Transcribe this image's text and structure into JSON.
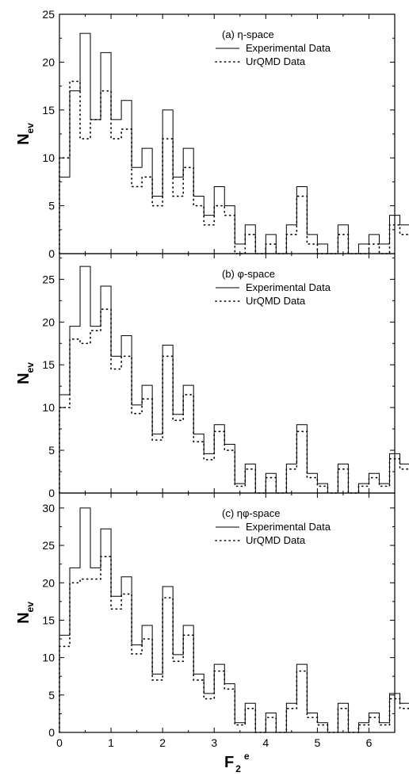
{
  "chart_data": [
    {
      "type": "histogram-step",
      "panel_label": "(a) η-space",
      "ylabel": "N",
      "ylabel_sub": "ev",
      "xlabel": "",
      "xlim": [
        0,
        6.5
      ],
      "ylim": [
        0,
        25
      ],
      "yticks": [
        "0",
        "5",
        "10",
        "15",
        "20",
        "25"
      ],
      "xticks": [],
      "bin_width": 0.2,
      "bin_start": 0.0,
      "series": [
        {
          "name": "Experimental Data",
          "style": "solid",
          "values": [
            8,
            17,
            23,
            14,
            21,
            14,
            16,
            9,
            11,
            6,
            15,
            8,
            11,
            6,
            4,
            7,
            5,
            1,
            3,
            0,
            2,
            0,
            3,
            7,
            2,
            1,
            0,
            3,
            0,
            1,
            2,
            1,
            4,
            3,
            1,
            0,
            2,
            1,
            0
          ]
        },
        {
          "name": "UrQMD Data",
          "style": "dotted",
          "values": [
            10,
            18,
            12,
            14,
            17,
            12,
            13,
            7,
            8,
            5,
            12,
            6,
            9,
            5,
            3,
            5,
            4,
            0,
            2,
            0,
            1,
            0,
            2,
            6,
            1,
            0,
            0,
            2,
            0,
            0,
            1,
            0,
            3,
            2,
            0,
            0,
            1,
            0,
            0
          ]
        }
      ]
    },
    {
      "type": "histogram-step",
      "panel_label": "(b) φ-space",
      "ylabel": "N",
      "ylabel_sub": "ev",
      "xlabel": "",
      "xlim": [
        0,
        6.5
      ],
      "ylim": [
        0,
        28
      ],
      "yticks": [
        "0",
        "5",
        "10",
        "15",
        "20",
        "25"
      ],
      "xticks": [],
      "bin_width": 0.2,
      "bin_start": 0.0,
      "series": [
        {
          "name": "Experimental Data",
          "style": "solid",
          "values": [
            11.5,
            19.5,
            26.5,
            19.5,
            24.2,
            16,
            18.4,
            10.3,
            12.6,
            6.9,
            17.3,
            9.2,
            12.6,
            6.9,
            4.6,
            8,
            5.7,
            1.1,
            3.4,
            0,
            2.3,
            0,
            3.4,
            8,
            2.3,
            1.1,
            0,
            3.4,
            0,
            1.1,
            2.3,
            1.1,
            4.6,
            3.4,
            1.1,
            0,
            2.3,
            1.1,
            0
          ]
        },
        {
          "name": "UrQMD Data",
          "style": "dotted",
          "values": [
            10,
            18,
            17.5,
            19,
            21.5,
            14.5,
            16,
            9.3,
            11,
            6.2,
            16,
            8.5,
            11.5,
            6,
            3.9,
            7.2,
            5,
            0.8,
            2.8,
            0,
            1.8,
            0,
            2.8,
            7.2,
            1.8,
            0.8,
            0,
            2.8,
            0,
            0.8,
            1.8,
            0.8,
            4,
            2.8,
            0.8,
            0,
            1.8,
            0.8,
            0
          ]
        }
      ]
    },
    {
      "type": "histogram-step",
      "panel_label": "(c) ηφ-space",
      "ylabel": "N",
      "ylabel_sub": "ev",
      "xlabel": "F",
      "xlabel_sub": "2",
      "xlabel_sup": "e",
      "xlim": [
        0,
        6.5
      ],
      "ylim": [
        0,
        32
      ],
      "yticks": [
        "0",
        "5",
        "10",
        "15",
        "20",
        "25",
        "30"
      ],
      "xticks": [
        "0",
        "1",
        "2",
        "3",
        "4",
        "5",
        "6"
      ],
      "bin_width": 0.2,
      "bin_start": 0.0,
      "series": [
        {
          "name": "Experimental Data",
          "style": "solid",
          "values": [
            13,
            22,
            30,
            22,
            27.2,
            18.2,
            20.8,
            11.7,
            14.3,
            7.8,
            19.5,
            10.4,
            14.3,
            7.8,
            5.2,
            9.1,
            6.5,
            1.3,
            3.9,
            0,
            2.6,
            0,
            3.9,
            9.1,
            2.6,
            1.3,
            0,
            3.9,
            0,
            1.3,
            2.6,
            1.3,
            5.2,
            3.9,
            1.3,
            0,
            2.6,
            1.3,
            0
          ]
        },
        {
          "name": "UrQMD Data",
          "style": "dotted",
          "values": [
            11.5,
            20,
            20.5,
            20.5,
            23.5,
            16.5,
            18.5,
            10.5,
            12.5,
            7,
            18,
            9.5,
            13,
            7,
            4.5,
            8.2,
            5.8,
            1,
            3.2,
            0,
            2,
            0,
            3.2,
            8.2,
            2,
            1,
            0,
            3.2,
            0,
            1,
            2,
            1,
            4.5,
            3.2,
            1,
            0,
            2,
            1,
            0
          ]
        }
      ]
    }
  ]
}
